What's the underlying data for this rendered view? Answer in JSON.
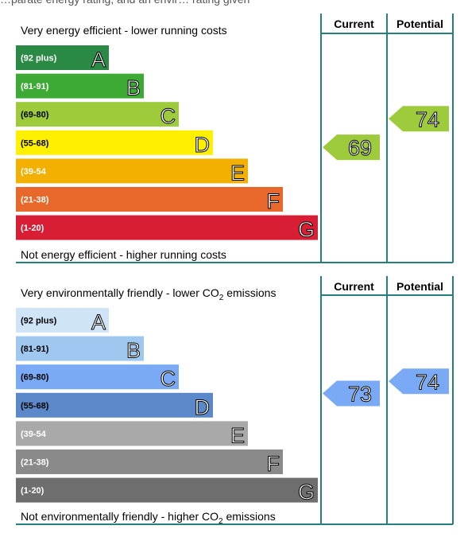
{
  "top_caption": "…parate energy rating, and an envir… rating given",
  "chart_data": [
    {
      "type": "bar",
      "top_text": "Very energy efficient - lower running costs",
      "bottom_text": "Not energy efficient - higher running costs",
      "column_headers": [
        "Current",
        "Potential"
      ],
      "bands": [
        {
          "range": "(92 plus)",
          "letter": "A",
          "color": "#2a8a45"
        },
        {
          "range": "(81-91)",
          "letter": "B",
          "color": "#3daa35"
        },
        {
          "range": "(69-80)",
          "letter": "C",
          "color": "#9dcb3b"
        },
        {
          "range": "(55-68)",
          "letter": "D",
          "color": "#fff000"
        },
        {
          "range": "(39-54",
          "letter": "E",
          "color": "#f4b000"
        },
        {
          "range": "(21-38)",
          "letter": "F",
          "color": "#e7682a"
        },
        {
          "range": "(1-20)",
          "letter": "G",
          "color": "#d71e35"
        }
      ],
      "current": {
        "value": 69,
        "band": "C",
        "color": "#9dcb3b"
      },
      "potential": {
        "value": 74,
        "band": "C",
        "color": "#9dcb3b"
      }
    },
    {
      "type": "bar",
      "top_text": "Very environmentally friendly - lower CO2 emissions",
      "bottom_text": "Not environmentally friendly - higher CO2 emissions",
      "column_headers": [
        "Current",
        "Potential"
      ],
      "bands": [
        {
          "range": "(92 plus)",
          "letter": "A",
          "color": "#cfe4f6"
        },
        {
          "range": "(81-91)",
          "letter": "B",
          "color": "#9ec8ef"
        },
        {
          "range": "(69-80)",
          "letter": "C",
          "color": "#7aaaf5"
        },
        {
          "range": "(55-68)",
          "letter": "D",
          "color": "#5a88c8"
        },
        {
          "range": "(39-54",
          "letter": "E",
          "color": "#a9a9a9"
        },
        {
          "range": "(21-38)",
          "letter": "F",
          "color": "#8a8a8a"
        },
        {
          "range": "(1-20)",
          "letter": "G",
          "color": "#6e6e6e"
        }
      ],
      "current": {
        "value": 73,
        "band": "C",
        "color": "#7aaaf5"
      },
      "potential": {
        "value": 74,
        "band": "C",
        "color": "#7aaaf5"
      }
    }
  ]
}
